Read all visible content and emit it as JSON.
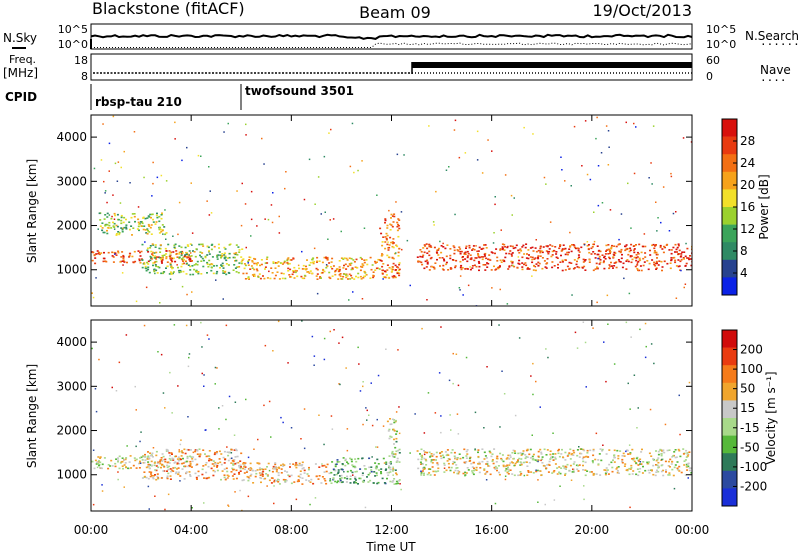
{
  "header": {
    "station": "Blackstone (fitACF)",
    "beam": "Beam 09",
    "date": "19/Oct/2013"
  },
  "summary": {
    "nsky_label": "N.Sky",
    "nsearch_label": "N.Search",
    "freq_label_1": "Freq.",
    "freq_label_2": "[MHz]",
    "nave_label": "Nave",
    "cpid_label": "CPID",
    "counts_ticks": [
      "10^5",
      "10^0"
    ],
    "freq_ticks": [
      "18",
      "8"
    ],
    "nave_ticks": [
      "60",
      "0"
    ],
    "cpid_segments": [
      {
        "name": "rbsp-tau 210",
        "start_hour": 0
      },
      {
        "name": "twofsound 3501",
        "start_hour": 6
      }
    ]
  },
  "chart_data": [
    {
      "type": "heatmap",
      "panel": "power",
      "ylabel": "Slant Range [km]",
      "ylim": [
        180,
        4500
      ],
      "xlim": [
        0,
        24
      ],
      "yticks": [
        1000,
        2000,
        3000,
        4000
      ],
      "colorbar_label": "Power [dB]",
      "colorbar_ticks": [
        4,
        8,
        12,
        16,
        20,
        24,
        28
      ],
      "colorbar_range": [
        0,
        32
      ],
      "colors": [
        "#0b22e6",
        "#27428f",
        "#2f8a64",
        "#3ba45a",
        "#9bd12e",
        "#f2e02a",
        "#f6a21a",
        "#f36f13",
        "#e83a10",
        "#d8100c"
      ],
      "features": [
        {
          "hours": [
            0.0,
            4.0
          ],
          "range_km": [
            1150,
            1450
          ],
          "level": 8
        },
        {
          "hours": [
            0.3,
            3.0
          ],
          "range_km": [
            1800,
            2300
          ],
          "level": 4
        },
        {
          "hours": [
            2.0,
            6.0
          ],
          "range_km": [
            900,
            1600
          ],
          "level": 4
        },
        {
          "hours": [
            6.0,
            11.5
          ],
          "range_km": [
            800,
            1300
          ],
          "level": 6
        },
        {
          "hours": [
            11.5,
            12.3
          ],
          "range_km": [
            800,
            2300
          ],
          "level": 7
        },
        {
          "hours": [
            13.0,
            24.0
          ],
          "range_km": [
            1000,
            1600
          ],
          "level": 8
        }
      ]
    },
    {
      "type": "heatmap",
      "panel": "velocity",
      "ylabel": "Slant Range [km]",
      "xlabel": "Time UT",
      "ylim": [
        180,
        4500
      ],
      "xlim": [
        0,
        24
      ],
      "yticks": [
        1000,
        2000,
        3000,
        4000
      ],
      "xticks": [
        "00:00",
        "04:00",
        "08:00",
        "12:00",
        "16:00",
        "20:00",
        "00:00"
      ],
      "colorbar_label": "Velocity [m s⁻¹]",
      "colorbar_ticks": [
        200,
        100,
        50,
        15,
        -15,
        -50,
        -100,
        -200
      ],
      "colors": [
        "#1a2fd8",
        "#2c4aa0",
        "#2e7a59",
        "#56b83a",
        "#a8d98a",
        "#c8c8c8",
        "#f0a52d",
        "#f57b1a",
        "#e93b10",
        "#d00b0b"
      ],
      "features": [
        {
          "hours": [
            0.0,
            4.0
          ],
          "range_km": [
            1150,
            1450
          ],
          "level": 5
        },
        {
          "hours": [
            2.0,
            6.0
          ],
          "range_km": [
            900,
            1600
          ],
          "level": 6
        },
        {
          "hours": [
            6.0,
            9.5
          ],
          "range_km": [
            800,
            1300
          ],
          "level": 6
        },
        {
          "hours": [
            9.5,
            11.8
          ],
          "range_km": [
            800,
            1400
          ],
          "level": 3
        },
        {
          "hours": [
            11.8,
            12.3
          ],
          "range_km": [
            800,
            2300
          ],
          "level": 4
        },
        {
          "hours": [
            13.0,
            24.0
          ],
          "range_km": [
            1000,
            1600
          ],
          "level": 5
        }
      ]
    }
  ]
}
